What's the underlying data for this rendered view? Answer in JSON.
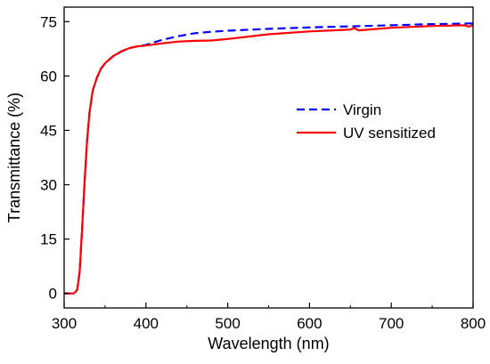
{
  "chart_data": {
    "type": "line",
    "title": "",
    "xlabel": "Wavelength (nm)",
    "ylabel": "Transmittance (%)",
    "xlim": [
      300,
      800
    ],
    "ylim": [
      -4,
      79
    ],
    "xticks": [
      300,
      400,
      500,
      600,
      700,
      800
    ],
    "yticks": [
      0,
      15,
      30,
      45,
      60,
      75
    ],
    "grid": false,
    "legend_position": "center-right",
    "series": [
      {
        "name": "Virgin",
        "color": "#0000ff",
        "style": "dashed",
        "x": [
          300,
          312,
          316,
          319,
          322,
          325,
          328,
          331,
          335,
          340,
          345,
          350,
          360,
          370,
          380,
          390,
          400,
          410,
          420,
          440,
          460,
          480,
          500,
          550,
          600,
          650,
          700,
          750,
          800
        ],
        "y": [
          0,
          0,
          1,
          6,
          18,
          31,
          42,
          50,
          56,
          59.5,
          62,
          63.5,
          65.5,
          66.8,
          67.7,
          68.2,
          68.6,
          69.3,
          70,
          71,
          71.8,
          72.2,
          72.5,
          73,
          73.4,
          73.7,
          74,
          74.3,
          74.5
        ]
      },
      {
        "name": "UV sensitized",
        "color": "#ff0000",
        "style": "solid",
        "x": [
          300,
          312,
          316,
          319,
          322,
          325,
          328,
          331,
          335,
          340,
          345,
          350,
          360,
          370,
          380,
          390,
          400,
          410,
          420,
          440,
          460,
          480,
          500,
          550,
          600,
          650,
          655,
          660,
          700,
          750,
          790,
          795,
          800
        ],
        "y": [
          0,
          0,
          1,
          6,
          18,
          31,
          42,
          50,
          56,
          59.5,
          62,
          63.5,
          65.5,
          66.8,
          67.7,
          68.2,
          68.4,
          68.7,
          69,
          69.5,
          69.7,
          69.8,
          70.2,
          71.5,
          72.3,
          72.8,
          73.2,
          72.6,
          73.3,
          73.8,
          74,
          73.6,
          74.1
        ]
      }
    ]
  }
}
